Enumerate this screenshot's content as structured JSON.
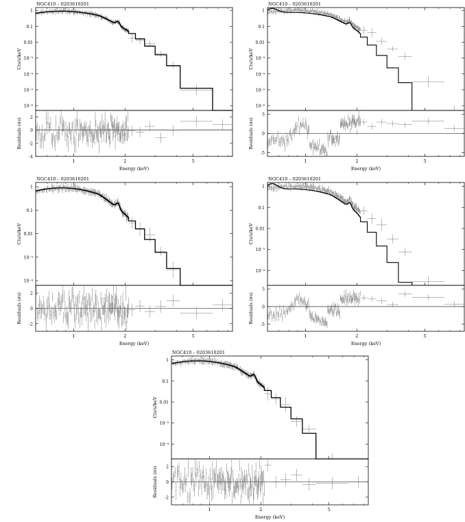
{
  "chart_data": [
    {
      "type": "line",
      "title": "NGC410 – 0203610201",
      "xlabel": "Energy (keV)",
      "ylabel_top": "Cts/s/keV",
      "ylabel_bottom": "Residuals (σs)",
      "xscale": "log",
      "yscale_top": "log",
      "xlim": [
        0.6,
        8.5
      ],
      "ylim_top": [
        5e-07,
        1.5
      ],
      "ylim_bottom": [
        -4,
        3
      ],
      "x_ticks": [
        "1",
        "2",
        "5"
      ],
      "y_ticks_top": [
        "1",
        "0.1",
        "0.01",
        "10⁻³",
        "10⁻⁴",
        "10⁻⁵",
        "10⁻⁶"
      ],
      "y_ticks_bottom": [
        "2",
        "0",
        "-2",
        "-4"
      ],
      "model_description": "Residuals distributed around zero with a feature near 1.8 keV"
    },
    {
      "type": "line",
      "title": "NGC410 – 0203610201",
      "xlabel": "Energy (keV)",
      "ylabel_top": "Cts/s/keV",
      "ylabel_bottom": "Residuals (σs)",
      "xscale": "log",
      "yscale_top": "log",
      "xlim": [
        0.6,
        8.5
      ],
      "ylim_top": [
        5e-07,
        1.5
      ],
      "ylim_bottom": [
        -6,
        6
      ],
      "x_ticks": [
        "1",
        "2",
        "5"
      ],
      "y_ticks_top": [
        "1",
        "0.1",
        "0.01",
        "10⁻³",
        "10⁻⁴",
        "10⁻⁵",
        "10⁻⁶"
      ],
      "y_ticks_bottom": [
        "5",
        "0",
        "-5"
      ],
      "model_description": "Poor fit: residuals with strong systematic structure"
    },
    {
      "type": "line",
      "title": "NGC410 – 0203610201",
      "xlabel": "Energy (keV)",
      "ylabel_top": "Cts/s/keV",
      "ylabel_bottom": "Residuals (σs)",
      "xscale": "log",
      "yscale_top": "log",
      "xlim": [
        0.6,
        8.5
      ],
      "ylim_top": [
        6e-05,
        1.5
      ],
      "ylim_bottom": [
        -3,
        3
      ],
      "x_ticks": [
        "1",
        "2",
        "5"
      ],
      "y_ticks_top": [
        "1",
        "0.1",
        "0.01",
        "10⁻³",
        "10⁻⁴"
      ],
      "y_ticks_bottom": [
        "2",
        "0",
        "-2"
      ],
      "model_description": "Good fit: residuals scattered around zero"
    },
    {
      "type": "line",
      "title": "NGC410 – 0203610201",
      "xlabel": "Energy (keV)",
      "ylabel_top": "Cts/s/keV",
      "ylabel_bottom": "Residuals (σs)",
      "xscale": "log",
      "yscale_top": "log",
      "xlim": [
        0.6,
        8.5
      ],
      "ylim_top": [
        2e-05,
        1.5
      ],
      "ylim_bottom": [
        -7,
        6
      ],
      "x_ticks": [
        "1",
        "2",
        "5"
      ],
      "y_ticks_top": [
        "1",
        "0.1",
        "0.01",
        "10⁻³",
        "10⁻⁴"
      ],
      "y_ticks_bottom": [
        "5",
        "0",
        "-5"
      ],
      "model_description": "Poor fit: residuals with strong systematic structure"
    },
    {
      "type": "line",
      "title": "NGC410 – 0203610201",
      "xlabel": "Energy (keV)",
      "ylabel_top": "Cts/s/keV",
      "ylabel_bottom": "Residuals (σs)",
      "xscale": "log",
      "yscale_top": "log",
      "xlim": [
        0.6,
        8.5
      ],
      "ylim_top": [
        2e-05,
        1.5
      ],
      "ylim_bottom": [
        -3,
        3
      ],
      "x_ticks": [
        "1",
        "2",
        "5"
      ],
      "y_ticks_top": [
        "1",
        "0.1",
        "0.01",
        "10⁻³",
        "10⁻⁴"
      ],
      "y_ticks_bottom": [
        "2",
        "0",
        "-2"
      ],
      "model_description": "Good fit: residuals scattered around zero"
    }
  ]
}
